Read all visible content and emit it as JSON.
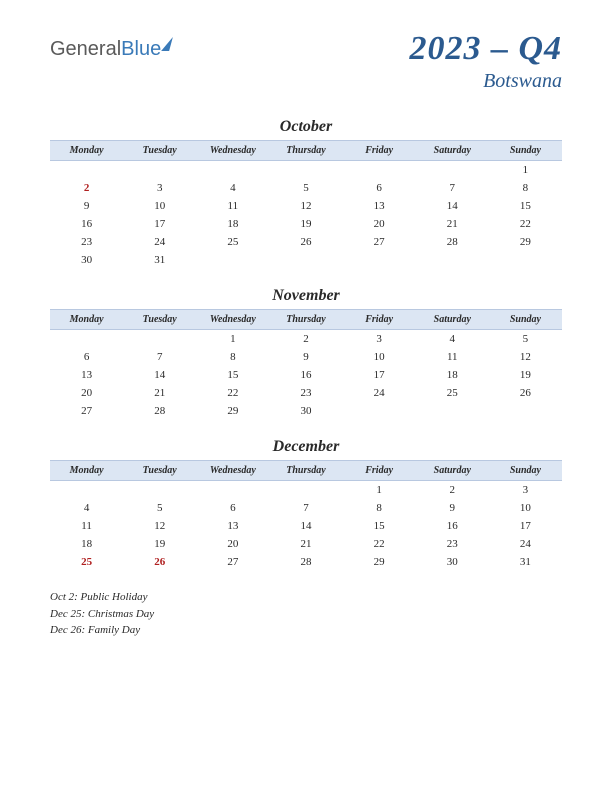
{
  "logo": {
    "part1": "General",
    "part2": "Blue"
  },
  "title": "2023 – Q4",
  "subtitle": "Botswana",
  "day_headers": [
    "Monday",
    "Tuesday",
    "Wednesday",
    "Thursday",
    "Friday",
    "Saturday",
    "Sunday"
  ],
  "colors": {
    "header_bg": "#dce6f3",
    "header_border": "#b8c8e0",
    "title_color": "#2b5a8f",
    "holiday_color": "#b02020",
    "text_color": "#2a2a2a",
    "logo_gray": "#5a5a5a",
    "logo_blue": "#3a7ab8",
    "background": "#ffffff"
  },
  "typography": {
    "title_fontsize": 34,
    "subtitle_fontsize": 20,
    "month_fontsize": 16,
    "header_fontsize": 10,
    "cell_fontsize": 11,
    "holiday_list_fontsize": 11
  },
  "months": [
    {
      "name": "October",
      "weeks": [
        [
          "",
          "",
          "",
          "",
          "",
          "",
          "1"
        ],
        [
          "2",
          "3",
          "4",
          "5",
          "6",
          "7",
          "8"
        ],
        [
          "9",
          "10",
          "11",
          "12",
          "13",
          "14",
          "15"
        ],
        [
          "16",
          "17",
          "18",
          "19",
          "20",
          "21",
          "22"
        ],
        [
          "23",
          "24",
          "25",
          "26",
          "27",
          "28",
          "29"
        ],
        [
          "30",
          "31",
          "",
          "",
          "",
          "",
          ""
        ]
      ],
      "holidays": [
        "2"
      ]
    },
    {
      "name": "November",
      "weeks": [
        [
          "",
          "",
          "1",
          "2",
          "3",
          "4",
          "5"
        ],
        [
          "6",
          "7",
          "8",
          "9",
          "10",
          "11",
          "12"
        ],
        [
          "13",
          "14",
          "15",
          "16",
          "17",
          "18",
          "19"
        ],
        [
          "20",
          "21",
          "22",
          "23",
          "24",
          "25",
          "26"
        ],
        [
          "27",
          "28",
          "29",
          "30",
          "",
          "",
          ""
        ]
      ],
      "holidays": []
    },
    {
      "name": "December",
      "weeks": [
        [
          "",
          "",
          "",
          "",
          "1",
          "2",
          "3"
        ],
        [
          "4",
          "5",
          "6",
          "7",
          "8",
          "9",
          "10"
        ],
        [
          "11",
          "12",
          "13",
          "14",
          "15",
          "16",
          "17"
        ],
        [
          "18",
          "19",
          "20",
          "21",
          "22",
          "23",
          "24"
        ],
        [
          "25",
          "26",
          "27",
          "28",
          "29",
          "30",
          "31"
        ]
      ],
      "holidays": [
        "25",
        "26"
      ]
    }
  ],
  "holiday_list": [
    "Oct 2: Public Holiday",
    "Dec 25: Christmas Day",
    "Dec 26: Family Day"
  ]
}
